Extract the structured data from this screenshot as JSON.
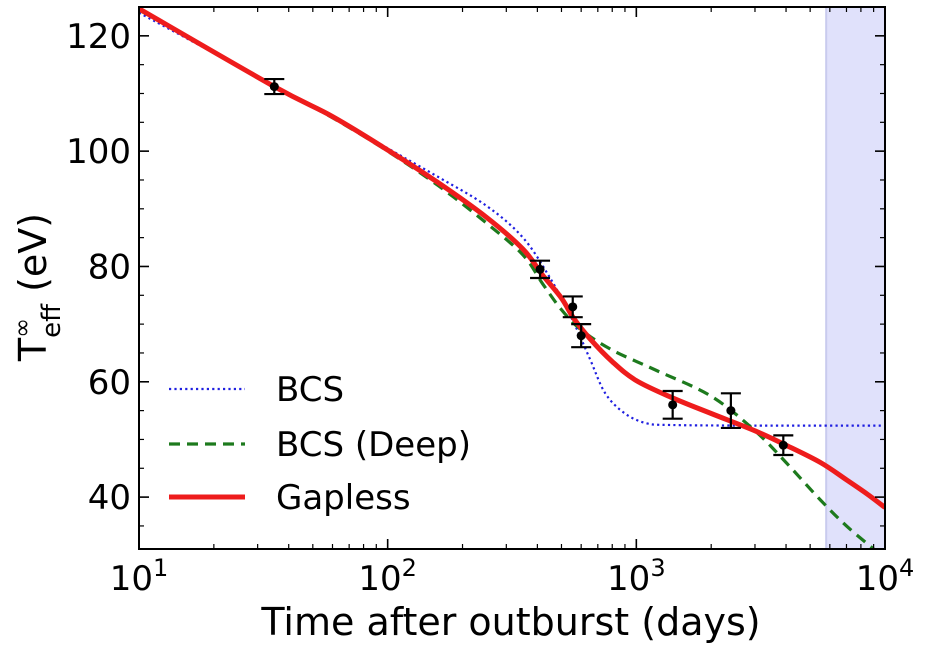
{
  "chart_data": {
    "type": "line",
    "xlabel": "Time after outburst (days)",
    "ylabel_main": "T",
    "ylabel_super": "∞",
    "ylabel_sub": "eff",
    "ylabel_rest": " (eV)",
    "x_scale": "log",
    "xlim": [
      10,
      10000
    ],
    "ylim": [
      31,
      125
    ],
    "x_ticks": [
      {
        "value": 10,
        "base": "10",
        "exp": "1"
      },
      {
        "value": 100,
        "base": "10",
        "exp": "2"
      },
      {
        "value": 1000,
        "base": "10",
        "exp": "3"
      },
      {
        "value": 10000,
        "base": "10",
        "exp": "4"
      }
    ],
    "y_ticks": [
      {
        "value": 40,
        "label": "40"
      },
      {
        "value": 60,
        "label": "60"
      },
      {
        "value": 80,
        "label": "80"
      },
      {
        "value": 100,
        "label": "100"
      },
      {
        "value": 120,
        "label": "120"
      }
    ],
    "shaded_region": {
      "x_from": 5800,
      "x_to": 10000,
      "color": "#e0e1fb"
    },
    "legend_position": "lower-left",
    "series": [
      {
        "name": "BCS",
        "style": "dotted",
        "color": "#1f1fe0",
        "points": [
          [
            10,
            124
          ],
          [
            20,
            117
          ],
          [
            35,
            111
          ],
          [
            60,
            106
          ],
          [
            100,
            100.5
          ],
          [
            160,
            95.5
          ],
          [
            250,
            90.5
          ],
          [
            350,
            85
          ],
          [
            450,
            78
          ],
          [
            550,
            71
          ],
          [
            650,
            64
          ],
          [
            750,
            58
          ],
          [
            900,
            54.5
          ],
          [
            1100,
            52.8
          ],
          [
            1400,
            52.5
          ],
          [
            3000,
            52.4
          ],
          [
            10000,
            52.4
          ]
        ]
      },
      {
        "name": "BCS (Deep)",
        "style": "dashed",
        "color": "#1d7a1d",
        "points": [
          [
            10,
            124.5
          ],
          [
            35,
            111.3
          ],
          [
            60,
            105.8
          ],
          [
            100,
            100
          ],
          [
            160,
            94
          ],
          [
            250,
            87.5
          ],
          [
            350,
            82
          ],
          [
            420,
            77
          ],
          [
            500,
            72.5
          ],
          [
            600,
            69
          ],
          [
            800,
            65.5
          ],
          [
            1200,
            62
          ],
          [
            2000,
            57.5
          ],
          [
            3000,
            51.5
          ],
          [
            4000,
            46
          ],
          [
            5500,
            39.5
          ],
          [
            7000,
            35
          ],
          [
            9000,
            31
          ]
        ]
      },
      {
        "name": "Gapless",
        "style": "solid",
        "color": "#ee1c1c",
        "points": [
          [
            10,
            124.7
          ],
          [
            35,
            111.2
          ],
          [
            60,
            106
          ],
          [
            100,
            100.2
          ],
          [
            160,
            94.5
          ],
          [
            250,
            88.5
          ],
          [
            350,
            83
          ],
          [
            420,
            78.5
          ],
          [
            500,
            74.5
          ],
          [
            560,
            71
          ],
          [
            650,
            67.5
          ],
          [
            800,
            63.5
          ],
          [
            1000,
            60.2
          ],
          [
            1400,
            57.2
          ],
          [
            2000,
            54.5
          ],
          [
            3000,
            51.5
          ],
          [
            4000,
            49
          ],
          [
            5500,
            46
          ],
          [
            7000,
            43
          ],
          [
            8500,
            40.5
          ],
          [
            10000,
            38.2
          ]
        ]
      }
    ],
    "observations": [
      {
        "x": 35,
        "y": 111.2,
        "err": 1.3
      },
      {
        "x": 410,
        "y": 79.5,
        "err": 1.5
      },
      {
        "x": 555,
        "y": 73,
        "err": 1.8
      },
      {
        "x": 600,
        "y": 68,
        "err": 2.0
      },
      {
        "x": 1400,
        "y": 56,
        "err": 2.4
      },
      {
        "x": 2400,
        "y": 55,
        "err": 3.0
      },
      {
        "x": 3900,
        "y": 49,
        "err": 1.7
      }
    ]
  }
}
